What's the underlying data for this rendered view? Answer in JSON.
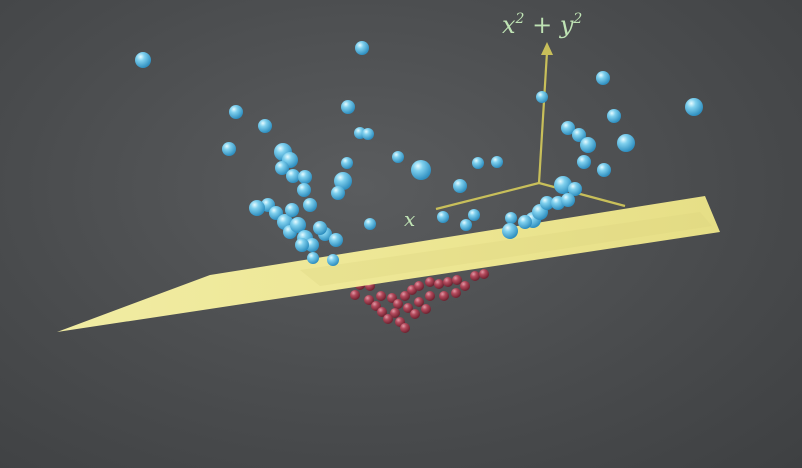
{
  "labels": {
    "z_axis_base": "x",
    "z_axis_plus": " + ",
    "z_axis_y": "y",
    "z_axis_exp": "2",
    "x_axis": "x"
  },
  "colors": {
    "background": "#4a4c4e",
    "plane": "#f3ee9a",
    "plane_shade": "#c9c26a",
    "axis": "#c8bf5a",
    "label": "#bfe3b4",
    "blue_point": "#7fd0ee",
    "blue_point_dark": "#2f8fc0",
    "red_point": "#b34a5c",
    "red_point_dark": "#6e2230"
  },
  "legend": [],
  "point_classes": [
    "blue-outer",
    "red-inner"
  ]
}
